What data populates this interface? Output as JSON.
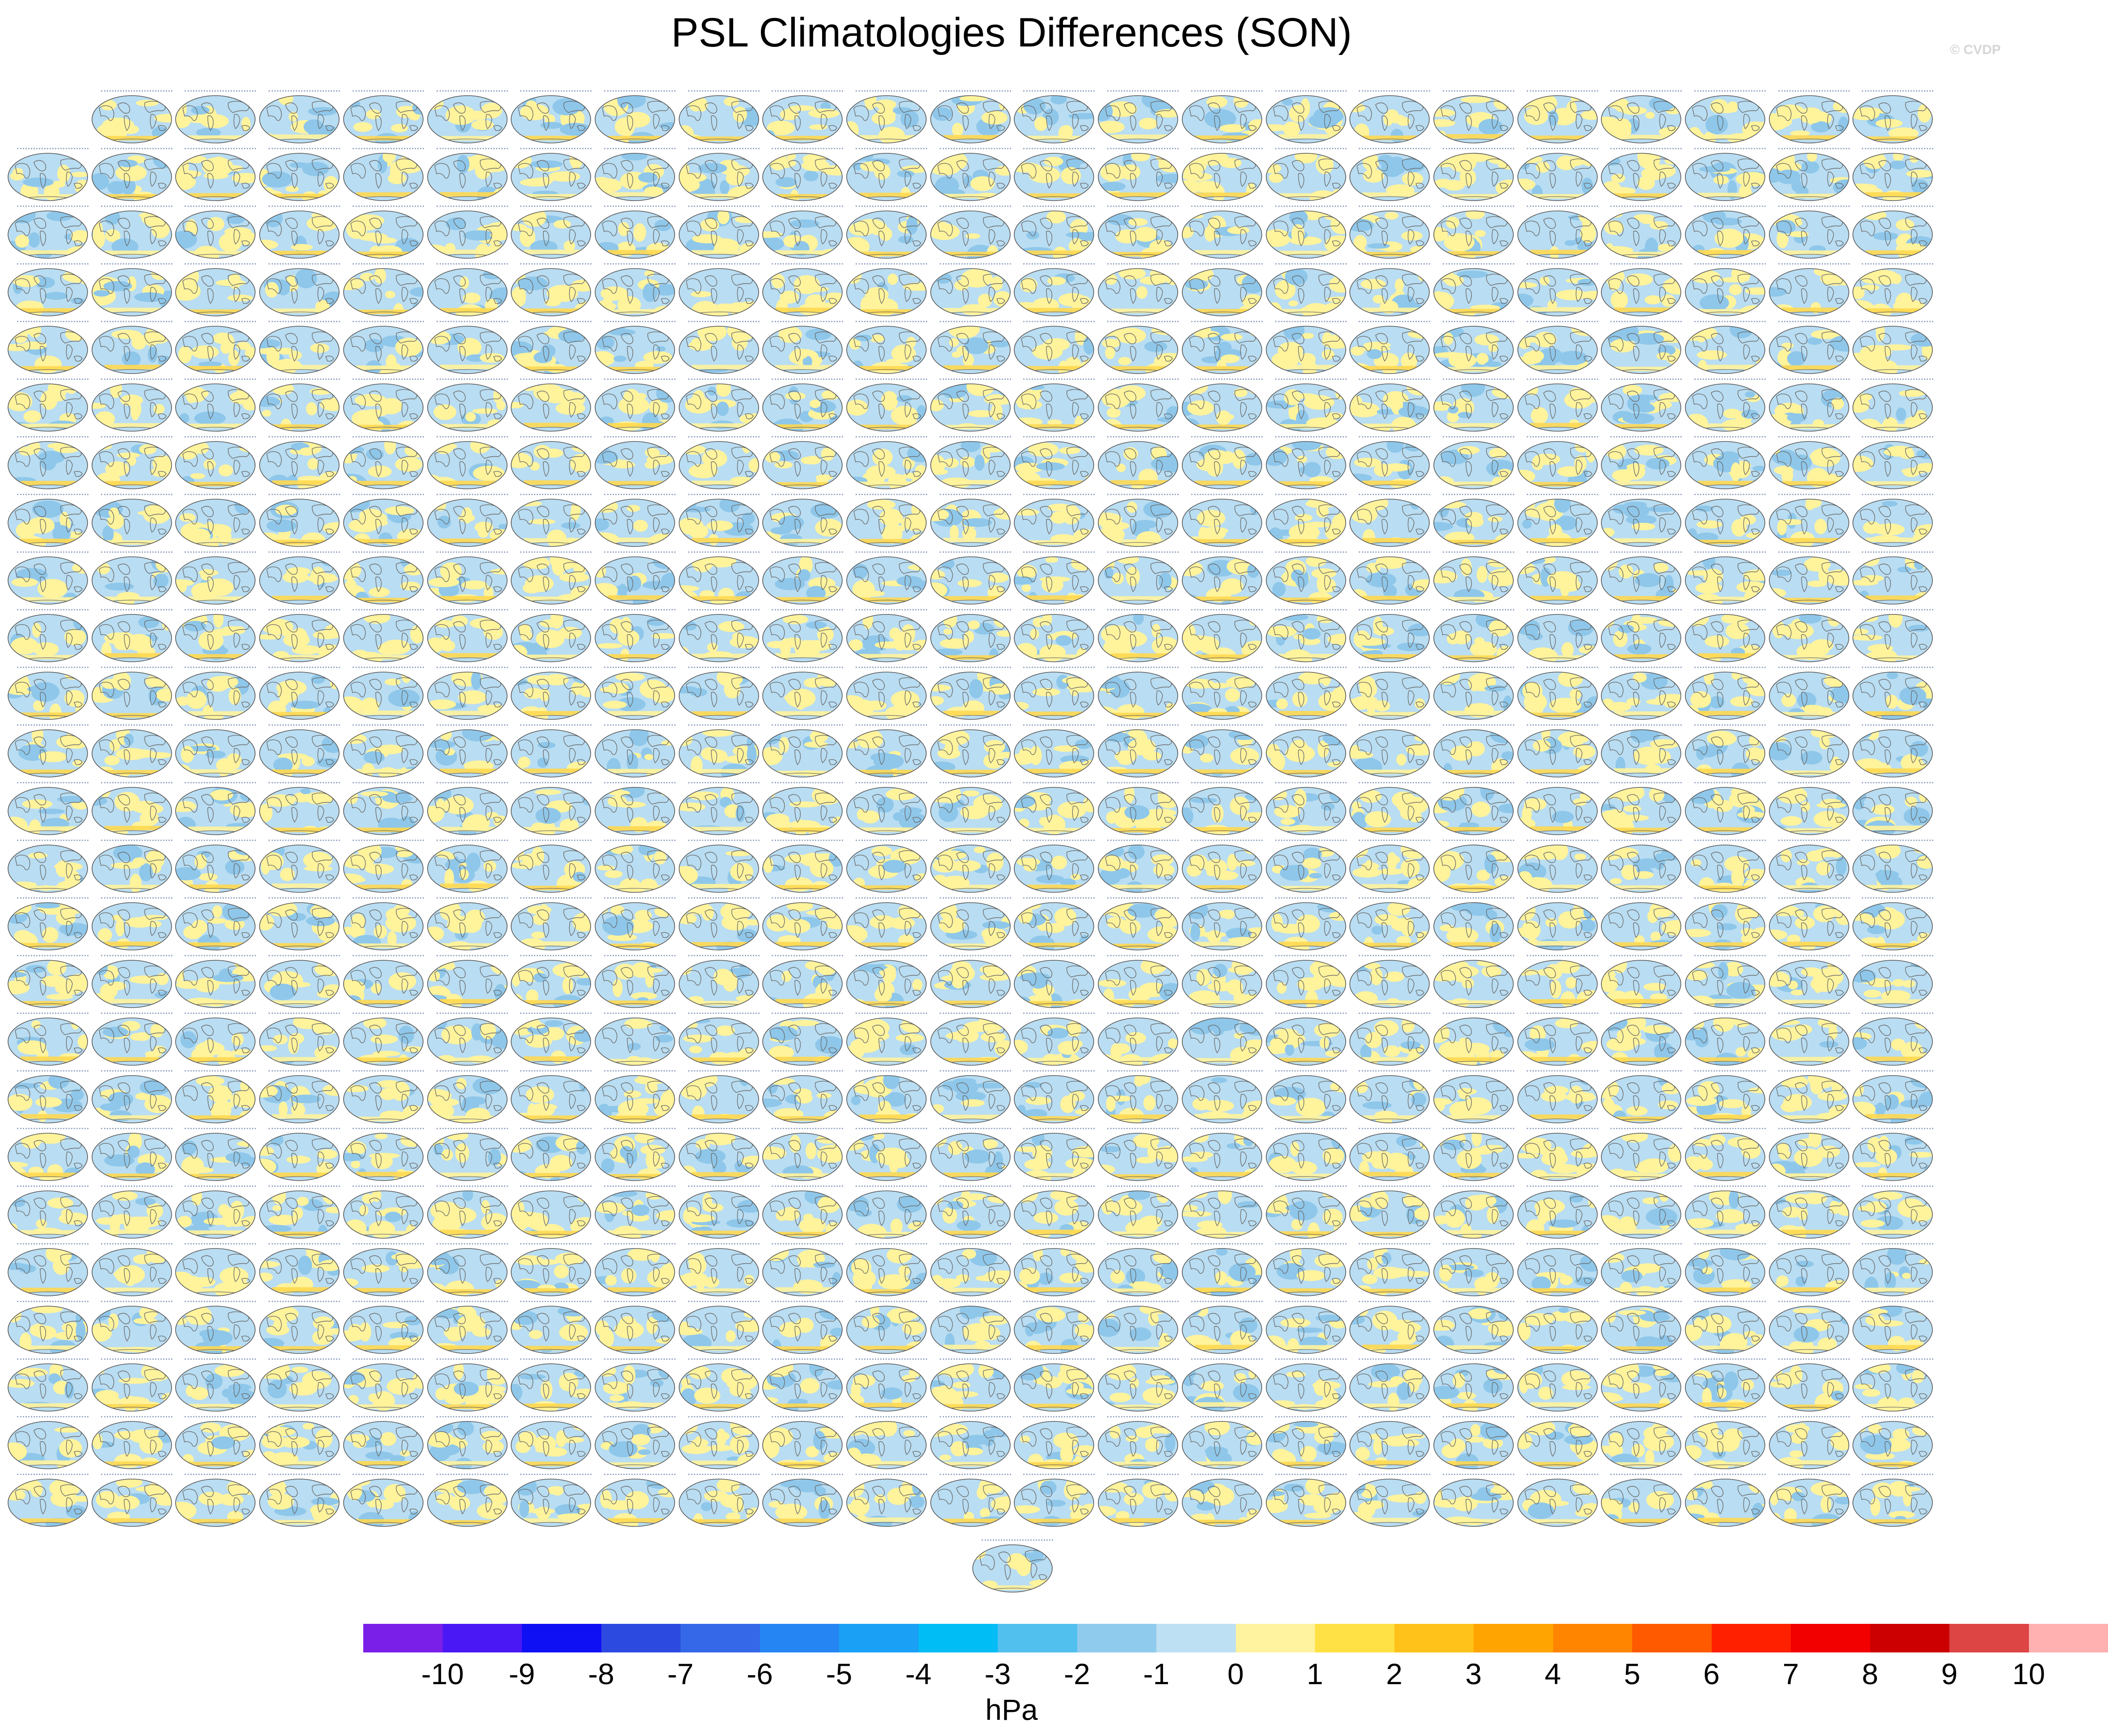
{
  "title": "PSL Climatologies Differences (SON)",
  "watermark": "© CVDP",
  "panel_grid": {
    "rows": [
      22,
      23,
      23,
      23,
      23,
      23,
      23,
      23,
      23,
      23,
      23,
      23,
      23,
      23,
      23,
      23,
      23,
      23,
      23,
      23,
      23,
      23,
      23,
      23,
      23,
      1
    ],
    "first_row_skip": 1,
    "last_row_offset": 11.5
  },
  "colorbar": {
    "unit_label": "hPa",
    "tick_labels": [
      "-10",
      "-9",
      "-8",
      "-7",
      "-6",
      "-5",
      "-4",
      "-3",
      "-2",
      "-1",
      "0",
      "1",
      "2",
      "3",
      "4",
      "5",
      "6",
      "7",
      "8",
      "9",
      "10"
    ],
    "colors": [
      "#7a1fe8",
      "#4a18f5",
      "#1010f5",
      "#2d4ae0",
      "#3468e8",
      "#2585f2",
      "#1aa0f5",
      "#00bdf5",
      "#52c0ee",
      "#8fcbec",
      "#bde0f3",
      "#fff3a0",
      "#ffe146",
      "#ffc21a",
      "#ffa400",
      "#ff8500",
      "#ff5a00",
      "#ff2000",
      "#f20000",
      "#cc0000",
      "#dd4444",
      "#ffb0b0"
    ]
  },
  "map_colors": {
    "ocean_blue": "#b9ddf2",
    "anomaly_yellow": "#fff39c",
    "anomaly_gold": "#ffd850",
    "anomaly_blue": "#8ec7ea",
    "coast": "#6b6b6b"
  }
}
